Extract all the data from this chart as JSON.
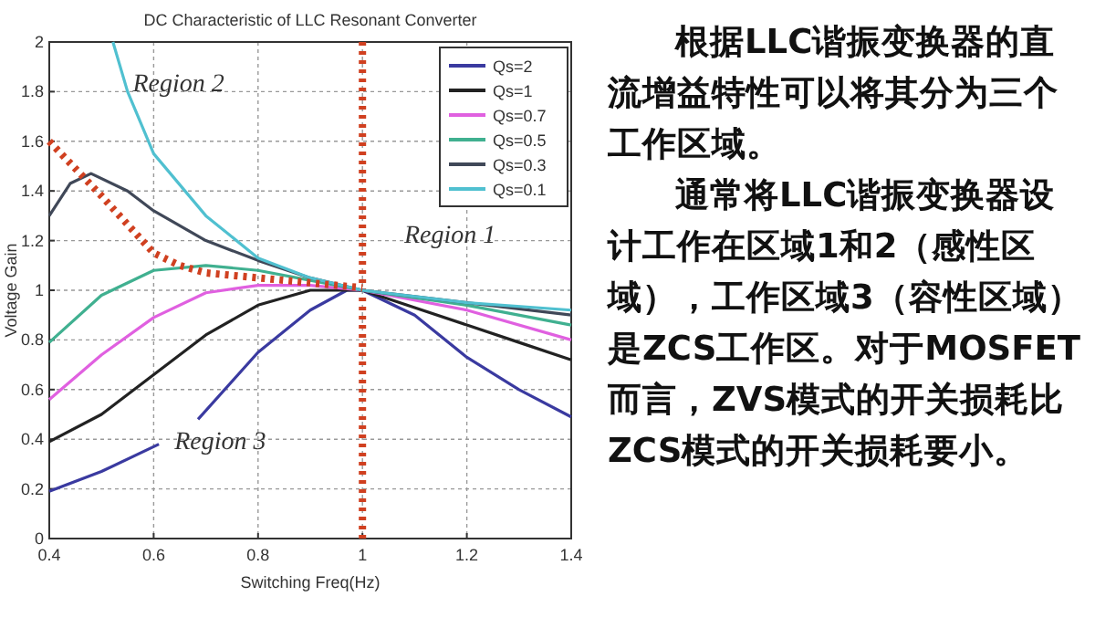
{
  "chart_data": [
    {
      "type": "line",
      "title": "DC Characteristic of LLC Resonant Converter",
      "xlabel": "Switching Freq(Hz)",
      "ylabel": "Voltage Gain",
      "xlim": [
        0.4,
        1.4
      ],
      "xticks": [
        0.4,
        0.6,
        0.8,
        1,
        1.2,
        1.4
      ],
      "ylim": [
        0,
        2
      ],
      "yticks": [
        0,
        0.2,
        0.4,
        0.6,
        0.8,
        1,
        1.2,
        1.4,
        1.6,
        1.8,
        2
      ],
      "grid": true,
      "legend": "top right",
      "line_style": "solid",
      "series": [
        {
          "name": "Qs=2",
          "color": "#3a3aa0",
          "x": [
            0.4,
            0.5,
            0.61,
            0.65,
            0.685,
            0.8,
            0.9,
            0.97,
            1.0,
            1.1,
            1.2,
            1.3,
            1.4
          ],
          "values": [
            0.19,
            0.27,
            0.38,
            null,
            0.48,
            0.75,
            0.92,
            1.0,
            1.0,
            0.9,
            0.73,
            0.6,
            0.49
          ]
        },
        {
          "name": "Qs=1",
          "color": "#222222",
          "x": [
            0.4,
            0.5,
            0.6,
            0.7,
            0.8,
            0.9,
            1.0,
            1.1,
            1.2,
            1.3,
            1.4
          ],
          "values": [
            0.39,
            0.5,
            0.66,
            0.82,
            0.94,
            1.0,
            1.0,
            0.93,
            0.86,
            0.79,
            0.72
          ]
        },
        {
          "name": "Qs=0.7",
          "color": "#e060e0",
          "x": [
            0.4,
            0.5,
            0.6,
            0.7,
            0.8,
            0.9,
            1.0,
            1.2,
            1.4
          ],
          "values": [
            0.56,
            0.74,
            0.89,
            0.99,
            1.02,
            1.02,
            1.0,
            0.92,
            0.8
          ]
        },
        {
          "name": "Qs=0.5",
          "color": "#40b090",
          "x": [
            0.4,
            0.5,
            0.6,
            0.7,
            0.8,
            0.9,
            1.0,
            1.2,
            1.4
          ],
          "values": [
            0.79,
            0.98,
            1.08,
            1.1,
            1.08,
            1.04,
            1.0,
            0.94,
            0.86
          ]
        },
        {
          "name": "Qs=0.3",
          "color": "#404858",
          "x": [
            0.4,
            0.44,
            0.48,
            0.55,
            0.6,
            0.7,
            0.8,
            0.9,
            1.0,
            1.2,
            1.4
          ],
          "values": [
            1.3,
            1.43,
            1.47,
            1.4,
            1.32,
            1.2,
            1.12,
            1.05,
            1.0,
            0.95,
            0.9
          ]
        },
        {
          "name": "Qs=0.1",
          "color": "#50c0d0",
          "x": [
            0.522,
            0.55,
            0.6,
            0.7,
            0.8,
            0.9,
            1.0,
            1.2,
            1.4
          ],
          "values": [
            2.0,
            1.8,
            1.55,
            1.3,
            1.13,
            1.05,
            1.0,
            0.95,
            0.92
          ]
        },
        {
          "color": "#d04020",
          "line_style": "dotted",
          "x": [
            0.4,
            0.5,
            0.6,
            0.65,
            0.7,
            0.8,
            0.9,
            1.0
          ],
          "values": [
            1.6,
            1.38,
            1.15,
            1.1,
            1.07,
            1.05,
            1.03,
            1.01
          ]
        }
      ],
      "ref_lines": [
        {
          "axis": "x",
          "value": 1,
          "color": "#d04020",
          "line_style": "dotted"
        }
      ],
      "annotations": [
        "Region 2",
        "Region 1",
        "Region 3"
      ]
    },
    {
      "type": "other",
      "annotations": [
        "根据LLC谐振变换器的直流增益特性可以将其分为三个工作区域。",
        "通常将LLC谐振变换器设计工作在区域1和2（感性区域），工作区域3（容性区域）是ZCS工作区。对于MOSFET而言，ZVS模式的开关损耗比ZCS模式的开关损耗要小。"
      ]
    }
  ]
}
